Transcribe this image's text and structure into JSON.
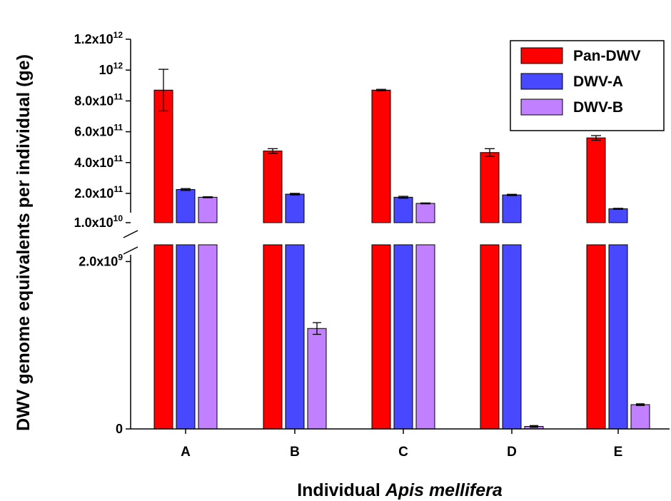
{
  "chart_data": {
    "type": "bar",
    "ylabel": "DWV genome equivalents per individual (ge)",
    "xlabel_prefix": "Individual ",
    "xlabel_italic": "Apis mellifera",
    "categories": [
      "A",
      "B",
      "C",
      "D",
      "E"
    ],
    "broken_axis": true,
    "lower_ylim": [
      0,
      2200000000.0
    ],
    "upper_ylim": [
      10000000000.0,
      1200000000000.0
    ],
    "lower_ticks": [
      {
        "value": 0,
        "base": "0",
        "exp": ""
      },
      {
        "value": 2000000000.0,
        "base": "2.0x10",
        "exp": "9"
      }
    ],
    "upper_ticks": [
      {
        "value": 10000000000.0,
        "base": "1.0x10",
        "exp": "10"
      },
      {
        "value": 200000000000.0,
        "base": "2.0x10",
        "exp": "11"
      },
      {
        "value": 400000000000.0,
        "base": "4.0x10",
        "exp": "11"
      },
      {
        "value": 600000000000.0,
        "base": "6.0x10",
        "exp": "11"
      },
      {
        "value": 800000000000.0,
        "base": "8.0x10",
        "exp": "11"
      },
      {
        "value": 1000000000000.0,
        "base": "10",
        "exp": "12"
      },
      {
        "value": 1200000000000.0,
        "base": "1.2x10",
        "exp": "12"
      }
    ],
    "series": [
      {
        "name": "Pan-DWV",
        "color": "#ff0000",
        "values": [
          870000000000.0,
          475000000000.0,
          870000000000.0,
          465000000000.0,
          560000000000.0
        ],
        "errors": [
          135000000000.0,
          15000000000.0,
          5000000000.0,
          25000000000.0,
          15000000000.0
        ]
      },
      {
        "name": "DWV-A",
        "color": "#4848ff",
        "values": [
          225000000000.0,
          195000000000.0,
          175000000000.0,
          190000000000.0,
          100000000000.0
        ],
        "errors": [
          6000000000.0,
          5000000000.0,
          6000000000.0,
          4000000000.0,
          3000000000.0
        ]
      },
      {
        "name": "DWV-B",
        "color": "#c080ff",
        "values": [
          175000000000.0,
          1200000000.0,
          135000000000.0,
          30000000.0,
          290000000.0
        ],
        "errors": [
          3000000000.0,
          70000000.0,
          3000000000.0,
          10000000.0,
          10000000.0
        ]
      }
    ],
    "legend": {
      "position": "top-right"
    }
  }
}
